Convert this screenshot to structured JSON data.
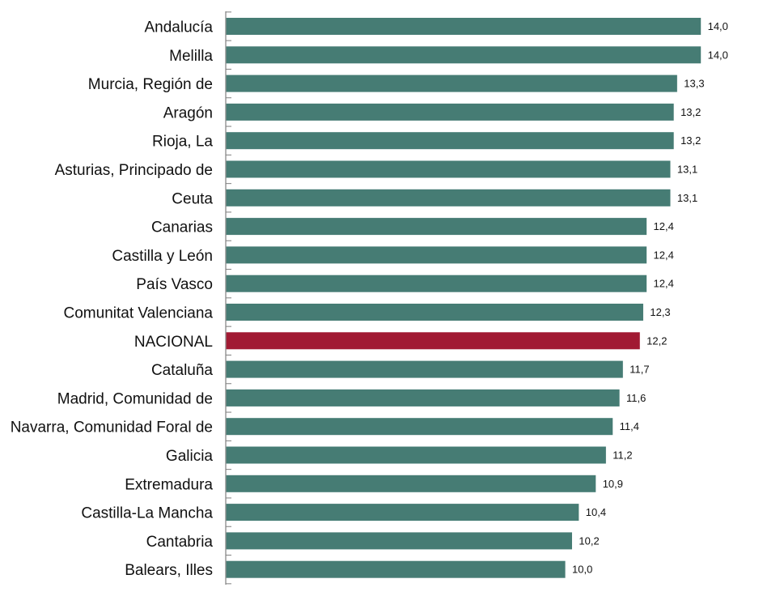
{
  "chart_data": {
    "type": "bar",
    "orientation": "horizontal",
    "categories": [
      "Andalucía",
      "Melilla",
      "Murcia, Región de",
      "Aragón",
      "Rioja, La",
      "Asturias, Principado de",
      "Ceuta",
      "Canarias",
      "Castilla y León",
      "País Vasco",
      "Comunitat Valenciana",
      "NACIONAL",
      "Cataluña",
      "Madrid, Comunidad de",
      "Navarra, Comunidad Foral de",
      "Galicia",
      "Extremadura",
      "Castilla-La Mancha",
      "Cantabria",
      "Balears, Illes"
    ],
    "values": [
      14.0,
      14.0,
      13.3,
      13.2,
      13.2,
      13.1,
      13.1,
      12.4,
      12.4,
      12.4,
      12.3,
      12.2,
      11.7,
      11.6,
      11.4,
      11.2,
      10.9,
      10.4,
      10.2,
      10.0
    ],
    "value_labels": [
      "14,0",
      "14,0",
      "13,3",
      "13,2",
      "13,2",
      "13,1",
      "13,1",
      "12,4",
      "12,4",
      "12,4",
      "12,3",
      "12,2",
      "11,7",
      "11,6",
      "11,4",
      "11,2",
      "10,9",
      "10,4",
      "10,2",
      "10,0"
    ],
    "highlight_category": "NACIONAL",
    "xlim": [
      0,
      14.0
    ],
    "grid": false,
    "legend": "none",
    "colors": {
      "bar": "#467c74",
      "highlight": "#a11a33",
      "axis": "#7f7f7f"
    }
  }
}
